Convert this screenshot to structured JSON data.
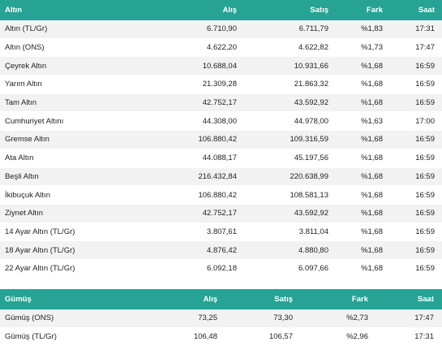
{
  "gold": {
    "headers": [
      "Altın",
      "Alış",
      "Satış",
      "Fark",
      "Saat"
    ],
    "rows": [
      [
        "Altın (TL/Gr)",
        "6.710,90",
        "6.711,79",
        "%1,83",
        "17:31"
      ],
      [
        "Altın (ONS)",
        "4.622,20",
        "4.622,82",
        "%1,73",
        "17:47"
      ],
      [
        "Çeyrek Altın",
        "10.688,04",
        "10.931,66",
        "%1,68",
        "16:59"
      ],
      [
        "Yarım Altın",
        "21.309,28",
        "21.863,32",
        "%1,68",
        "16:59"
      ],
      [
        "Tam Altın",
        "42.752,17",
        "43.592,92",
        "%1,68",
        "16:59"
      ],
      [
        "Cumhuriyet Altını",
        "44.308,00",
        "44.978,00",
        "%1,63",
        "17:00"
      ],
      [
        "Gremse Altın",
        "106.880,42",
        "109.316,59",
        "%1,68",
        "16:59"
      ],
      [
        "Ata Altın",
        "44.088,17",
        "45.197,56",
        "%1,68",
        "16:59"
      ],
      [
        "Beşli Altın",
        "216.432,84",
        "220.638,99",
        "%1,68",
        "16:59"
      ],
      [
        "İkibuçuk Altın",
        "106.880,42",
        "108.581,13",
        "%1,68",
        "16:59"
      ],
      [
        "Ziynet Altın",
        "42.752,17",
        "43.592,92",
        "%1,68",
        "16:59"
      ],
      [
        "14 Ayar Altın (TL/Gr)",
        "3.807,61",
        "3.811,04",
        "%1,68",
        "16:59"
      ],
      [
        "18 Ayar Altın (TL/Gr)",
        "4.876,42",
        "4.880,80",
        "%1,68",
        "16:59"
      ],
      [
        "22 Ayar Altın (TL/Gr)",
        "6.092,18",
        "6.097,66",
        "%1,68",
        "16:59"
      ]
    ]
  },
  "silver": {
    "headers": [
      "Gümüş",
      "Alış",
      "Satış",
      "Fark",
      "Saat"
    ],
    "rows": [
      [
        "Gümüş (ONS)",
        "73,25",
        "73,30",
        "%2,73",
        "17:47"
      ],
      [
        "Gümüş (TL/Gr)",
        "106,48",
        "106,57",
        "%2,96",
        "17:31"
      ]
    ]
  },
  "colors": {
    "header_bg": "#26a394",
    "header_text": "#ffffff",
    "stripe_bg": "#f2f2f2"
  }
}
